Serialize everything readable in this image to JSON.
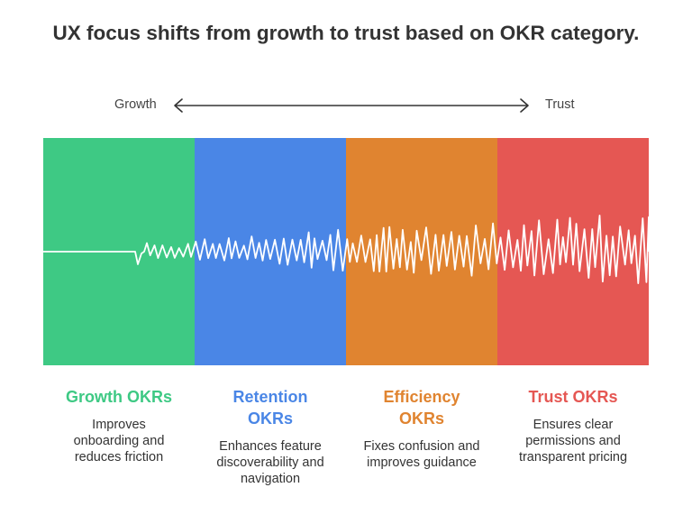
{
  "title": "UX focus shifts from growth to trust based on OKR category.",
  "axis": {
    "left": "Growth",
    "right": "Trust"
  },
  "colors": {
    "growth": "#3ec984",
    "retention": "#4a86e6",
    "efficiency": "#e08430",
    "trust": "#e55753",
    "wave": "#ffffff",
    "arrow": "#333333"
  },
  "categories": [
    {
      "key": "growth",
      "title_lines": [
        "Growth OKRs"
      ],
      "desc_lines": [
        "Improves",
        "onboarding and",
        "reduces friction"
      ]
    },
    {
      "key": "retention",
      "title_lines": [
        "Retention",
        "OKRs"
      ],
      "desc_lines": [
        "Enhances feature",
        "discoverability and",
        "navigation"
      ]
    },
    {
      "key": "efficiency",
      "title_lines": [
        "Efficiency",
        "OKRs"
      ],
      "desc_lines": [
        "Fixes confusion and",
        "improves guidance"
      ]
    },
    {
      "key": "trust",
      "title_lines": [
        "Trust OKRs"
      ],
      "desc_lines": [
        "Ensures clear",
        "permissions and",
        "transparent pricing"
      ]
    }
  ]
}
